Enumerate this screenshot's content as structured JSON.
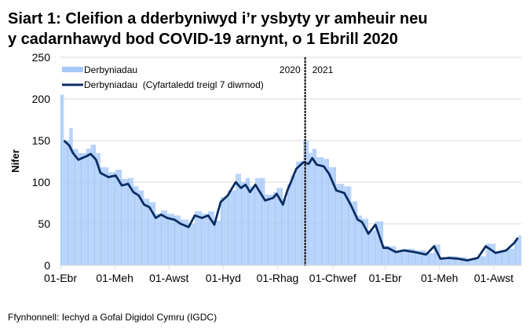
{
  "chart_data": {
    "type": "bar+line",
    "title_line1": "Siart 1: Cleifion a dderbyniwyd i’r ysbyty yr amheuir neu",
    "title_line2": "y cadarnhawyd bod COVID-19 arnynt, o 1 Ebrill 2020",
    "ylabel": "Nifer",
    "xlabel": "",
    "ylim": [
      0,
      250
    ],
    "yticks": [
      "0",
      "50",
      "100",
      "150",
      "200",
      "250"
    ],
    "xlim": [
      "2020-04-01",
      "2021-09-01"
    ],
    "xticks": [
      {
        "date": "2020-04-01",
        "label": "01-Ebr"
      },
      {
        "date": "2020-06-01",
        "label": "01-Meh"
      },
      {
        "date": "2020-08-01",
        "label": "01-Awst"
      },
      {
        "date": "2020-10-01",
        "label": "01-Hyd"
      },
      {
        "date": "2020-12-01",
        "label": "01-Rhag"
      },
      {
        "date": "2021-02-01",
        "label": "01-Chwef"
      },
      {
        "date": "2021-04-01",
        "label": "01-Ebr"
      },
      {
        "date": "2021-06-01",
        "label": "01-Meh"
      },
      {
        "date": "2021-08-01",
        "label": "01-Awst"
      }
    ],
    "grid": true,
    "legend_position": "top-left",
    "year_divider": {
      "date": "2021-01-01",
      "left_label": "2020",
      "right_label": "2021"
    },
    "colors": {
      "bars": "#a4c8f8",
      "line": "#0b2d63",
      "grid": "#d9d9d9",
      "divider": "#000000"
    },
    "series": [
      {
        "name": "Derbyniadau",
        "kind": "bar",
        "points": [
          [
            "2020-04-01",
            205
          ],
          [
            "2020-04-05",
            150
          ],
          [
            "2020-04-11",
            165
          ],
          [
            "2020-04-15",
            140
          ],
          [
            "2020-04-21",
            135
          ],
          [
            "2020-04-30",
            140
          ],
          [
            "2020-05-05",
            145
          ],
          [
            "2020-05-11",
            135
          ],
          [
            "2020-05-16",
            118
          ],
          [
            "2020-05-25",
            112
          ],
          [
            "2020-06-02",
            115
          ],
          [
            "2020-06-09",
            104
          ],
          [
            "2020-06-16",
            105
          ],
          [
            "2020-06-22",
            95
          ],
          [
            "2020-06-28",
            90
          ],
          [
            "2020-07-04",
            80
          ],
          [
            "2020-07-10",
            76
          ],
          [
            "2020-07-17",
            62
          ],
          [
            "2020-07-23",
            66
          ],
          [
            "2020-07-30",
            62
          ],
          [
            "2020-08-07",
            60
          ],
          [
            "2020-08-14",
            55
          ],
          [
            "2020-08-23",
            50
          ],
          [
            "2020-08-30",
            65
          ],
          [
            "2020-09-07",
            62
          ],
          [
            "2020-09-14",
            65
          ],
          [
            "2020-09-21",
            54
          ],
          [
            "2020-09-28",
            82
          ],
          [
            "2020-10-06",
            90
          ],
          [
            "2020-10-15",
            110
          ],
          [
            "2020-10-21",
            100
          ],
          [
            "2020-10-26",
            105
          ],
          [
            "2020-10-31",
            95
          ],
          [
            "2020-11-06",
            105
          ],
          [
            "2020-11-17",
            85
          ],
          [
            "2020-11-26",
            88
          ],
          [
            "2020-11-30",
            93
          ],
          [
            "2020-12-07",
            80
          ],
          [
            "2020-12-12",
            98
          ],
          [
            "2020-12-16",
            108
          ],
          [
            "2020-12-22",
            125
          ],
          [
            "2020-12-30",
            150
          ],
          [
            "2021-01-05",
            135
          ],
          [
            "2021-01-09",
            140
          ],
          [
            "2021-01-14",
            130
          ],
          [
            "2021-01-22",
            128
          ],
          [
            "2021-01-28",
            118
          ],
          [
            "2021-02-05",
            98
          ],
          [
            "2021-02-14",
            95
          ],
          [
            "2021-02-22",
            77
          ],
          [
            "2021-03-01",
            60
          ],
          [
            "2021-03-06",
            56
          ],
          [
            "2021-03-13",
            42
          ],
          [
            "2021-03-21",
            53
          ],
          [
            "2021-03-30",
            24
          ],
          [
            "2021-04-04",
            23
          ],
          [
            "2021-04-13",
            18
          ],
          [
            "2021-04-22",
            20
          ],
          [
            "2021-05-04",
            18
          ],
          [
            "2021-05-17",
            15
          ],
          [
            "2021-05-26",
            25
          ],
          [
            "2021-06-02",
            10
          ],
          [
            "2021-06-11",
            11
          ],
          [
            "2021-06-22",
            10
          ],
          [
            "2021-07-02",
            8
          ],
          [
            "2021-07-14",
            11
          ],
          [
            "2021-07-23",
            26
          ],
          [
            "2021-08-03",
            17
          ],
          [
            "2021-08-15",
            20
          ],
          [
            "2021-08-24",
            30
          ],
          [
            "2021-08-28",
            36
          ]
        ]
      },
      {
        "name": "Derbyniadau  (Cyfartaledd treigl 7 diwrnod)",
        "kind": "line",
        "points": [
          [
            "2020-04-05",
            150
          ],
          [
            "2020-04-11",
            144
          ],
          [
            "2020-04-15",
            135
          ],
          [
            "2020-04-21",
            127
          ],
          [
            "2020-04-30",
            131
          ],
          [
            "2020-05-05",
            134
          ],
          [
            "2020-05-11",
            127
          ],
          [
            "2020-05-16",
            111
          ],
          [
            "2020-05-25",
            106
          ],
          [
            "2020-06-02",
            108
          ],
          [
            "2020-06-09",
            96
          ],
          [
            "2020-06-16",
            98
          ],
          [
            "2020-06-22",
            88
          ],
          [
            "2020-06-28",
            84
          ],
          [
            "2020-07-04",
            73
          ],
          [
            "2020-07-10",
            70
          ],
          [
            "2020-07-17",
            57
          ],
          [
            "2020-07-23",
            61
          ],
          [
            "2020-07-30",
            57
          ],
          [
            "2020-08-07",
            55
          ],
          [
            "2020-08-14",
            50
          ],
          [
            "2020-08-23",
            46
          ],
          [
            "2020-08-30",
            60
          ],
          [
            "2020-09-07",
            57
          ],
          [
            "2020-09-14",
            60
          ],
          [
            "2020-09-21",
            49
          ],
          [
            "2020-09-28",
            76
          ],
          [
            "2020-10-06",
            84
          ],
          [
            "2020-10-15",
            100
          ],
          [
            "2020-10-21",
            93
          ],
          [
            "2020-10-26",
            97
          ],
          [
            "2020-10-31",
            88
          ],
          [
            "2020-11-06",
            97
          ],
          [
            "2020-11-17",
            78
          ],
          [
            "2020-11-26",
            81
          ],
          [
            "2020-11-30",
            86
          ],
          [
            "2020-12-07",
            73
          ],
          [
            "2020-12-12",
            90
          ],
          [
            "2020-12-16",
            100
          ],
          [
            "2020-12-22",
            116
          ],
          [
            "2020-12-30",
            124
          ],
          [
            "2021-01-05",
            122
          ],
          [
            "2021-01-09",
            129
          ],
          [
            "2021-01-14",
            121
          ],
          [
            "2021-01-22",
            119
          ],
          [
            "2021-01-28",
            110
          ],
          [
            "2021-02-05",
            90
          ],
          [
            "2021-02-14",
            87
          ],
          [
            "2021-02-22",
            71
          ],
          [
            "2021-03-01",
            55
          ],
          [
            "2021-03-06",
            52
          ],
          [
            "2021-03-13",
            38
          ],
          [
            "2021-03-21",
            49
          ],
          [
            "2021-03-30",
            21
          ],
          [
            "2021-04-04",
            21
          ],
          [
            "2021-04-13",
            16
          ],
          [
            "2021-04-22",
            18
          ],
          [
            "2021-05-04",
            16
          ],
          [
            "2021-05-17",
            13
          ],
          [
            "2021-05-26",
            23
          ],
          [
            "2021-06-02",
            8
          ],
          [
            "2021-06-11",
            9
          ],
          [
            "2021-06-22",
            8
          ],
          [
            "2021-07-02",
            6
          ],
          [
            "2021-07-14",
            9
          ],
          [
            "2021-07-23",
            23
          ],
          [
            "2021-08-03",
            15
          ],
          [
            "2021-08-15",
            18
          ],
          [
            "2021-08-24",
            27
          ],
          [
            "2021-08-28",
            33
          ]
        ]
      }
    ],
    "source": "Ffynhonnell: Iechyd a Gofal Digidol Cymru (IGDC)"
  }
}
